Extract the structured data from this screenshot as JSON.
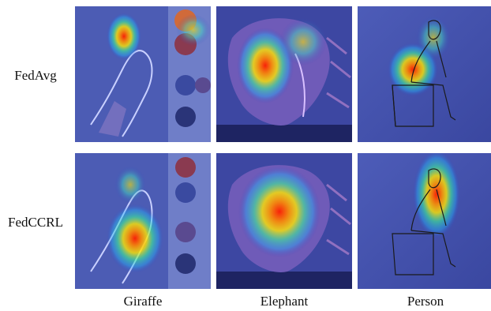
{
  "figure": {
    "rows": [
      {
        "method": "FedAvg"
      },
      {
        "method": "FedCCRL"
      }
    ],
    "columns": [
      {
        "class": "Giraffe"
      },
      {
        "class": "Elephant"
      },
      {
        "class": "Person"
      }
    ],
    "panels": [
      {
        "row": 0,
        "col": 0,
        "image": "giraffe-sketch-with-watercolor-paints",
        "heatmap_focus": "top-left background near paint palette"
      },
      {
        "row": 0,
        "col": 1,
        "image": "elephant-colored-pencil-drawing",
        "heatmap_focus": "upper-center of elephant head"
      },
      {
        "row": 0,
        "col": 2,
        "image": "person-line-drawing-seated-on-box",
        "heatmap_focus": "lower back and hip area"
      },
      {
        "row": 1,
        "col": 0,
        "image": "giraffe-sketch-with-watercolor-paints",
        "heatmap_focus": "giraffe head and neck"
      },
      {
        "row": 1,
        "col": 1,
        "image": "elephant-colored-pencil-drawing",
        "heatmap_focus": "elephant face and trunk"
      },
      {
        "row": 1,
        "col": 2,
        "image": "person-line-drawing-seated-on-box",
        "heatmap_focus": "head and upper body"
      }
    ],
    "colormap": [
      "#2a2f9e",
      "#00c8ff",
      "#00ff80",
      "#ffe600",
      "#ff2a00"
    ]
  }
}
